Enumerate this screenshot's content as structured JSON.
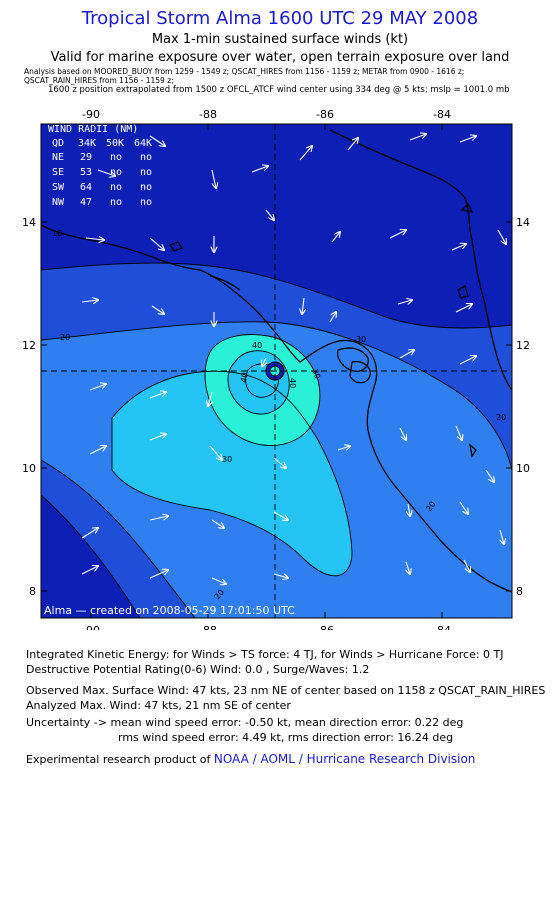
{
  "header": {
    "title": "Tropical Storm Alma 1600 UTC 29 MAY 2008",
    "subtitle1": "Max 1-min sustained surface winds (kt)",
    "subtitle2": "Valid for marine exposure over water, open terrain exposure over land",
    "analysis_line1": "Analysis based on  MOORED_BUOY from 1259 - 1549 z;  QSCAT_HIRES from 1156 - 1159 z;  METAR from 0900 - 1616 z;",
    "analysis_line2": "QSCAT_RAIN_HIRES from 1156 - 1159 z;",
    "analysis_line3": "1600 z position extrapolated from 1500 z OFCL_ATCF wind center using 334 deg @ 5 kts; mslp = 1001.0 mb"
  },
  "map": {
    "longitude_labels": [
      "-90",
      "-88",
      "-86",
      "-84"
    ],
    "latitude_labels": [
      "14",
      "12",
      "10",
      "8"
    ],
    "contour_labels": [
      "10",
      "20",
      "20",
      "20",
      "20",
      "30",
      "30",
      "30",
      "40",
      "40",
      "40"
    ],
    "footer_text": "Alma — created on 2008-05-29 17:01:50 UTC",
    "colors": {
      "level_0_10": "#0d1fb5",
      "level_10_20": "#1f4fd8",
      "level_20_30": "#2f7ff0",
      "level_30_40": "#24c4f5",
      "level_40_50": "#2af0d8",
      "arrow": "#ffffff",
      "land_outline": "#000000"
    }
  },
  "wind_radii": {
    "title": "WIND RADII (NM)",
    "columns": [
      "QD",
      "34K",
      "50K",
      "64K"
    ],
    "rows": [
      [
        "NE",
        "29",
        "no",
        "no"
      ],
      [
        "SE",
        "53",
        "no",
        "no"
      ],
      [
        "SW",
        "64",
        "no",
        "no"
      ],
      [
        "NW",
        "47",
        "no",
        "no"
      ]
    ]
  },
  "stats": {
    "ike_line": "Integrated Kinetic Energy:  for Winds > TS force: 4 TJ,  for Winds > Hurricane Force: 0 TJ",
    "dpr_line": "Destructive Potential Rating(0-6)   Wind: 0.0 , Surge/Waves: 1.2",
    "observed_line": "Observed Max. Surface Wind: 47 kts, 23 nm NE of center based on 1158 z QSCAT_RAIN_HIRES",
    "analyzed_line": "Analyzed Max. Wind: 47 kts, 21 nm SE of center",
    "uncertainty_line1": "Uncertainty -> mean wind speed error:  -0.50 kt,   mean direction error: 0.22 deg",
    "uncertainty_line2": "rms wind speed error: 4.49 kt,   rms direction error: 16.24 deg",
    "product_prefix": "Experimental research product of",
    "product_org": "NOAA / AOML / Hurricane Research Division"
  }
}
